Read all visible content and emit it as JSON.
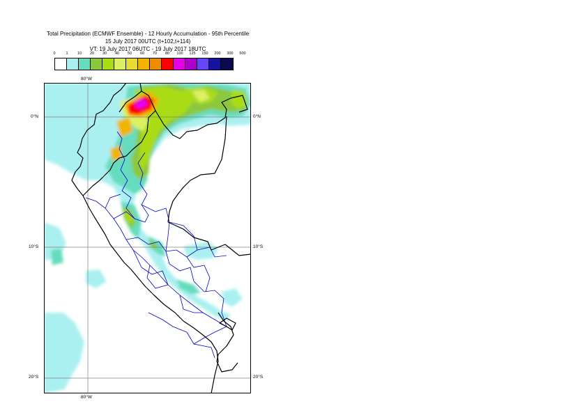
{
  "title": {
    "line1": "Total Precipitation (ECMWF Ensemble) - 12 Hourly Accumulation - 95th Percentile",
    "line2": "15 July 2017 00UTC (t+102,t+114)",
    "line3": "VT: 19 July 2017 06UTC - 19 July 2017 18UTC"
  },
  "legend": {
    "labels": [
      "0",
      "1",
      "10",
      "20",
      "30",
      "40",
      "50",
      "60",
      "70",
      "80",
      "100",
      "125",
      "150",
      "200",
      "300",
      "500"
    ],
    "colors": [
      "#ffffff",
      "#aaf0f0",
      "#66dcbe",
      "#8cc83c",
      "#aadc14",
      "#dcf064",
      "#e6dc32",
      "#f0b400",
      "#f08c00",
      "#ff0000",
      "#e600e6",
      "#aa00c8",
      "#6446ff",
      "#1414a0",
      "#0a0a50"
    ]
  },
  "axes": {
    "top_lon": "80°W",
    "bottom_lon": "80°W",
    "lat_0_left": "0°N",
    "lat_0_right": "0°N",
    "lat_10_left": "10°S",
    "lat_10_right": "10°S",
    "lat_20_left": "20°S",
    "lat_20_right": "20°S"
  }
}
